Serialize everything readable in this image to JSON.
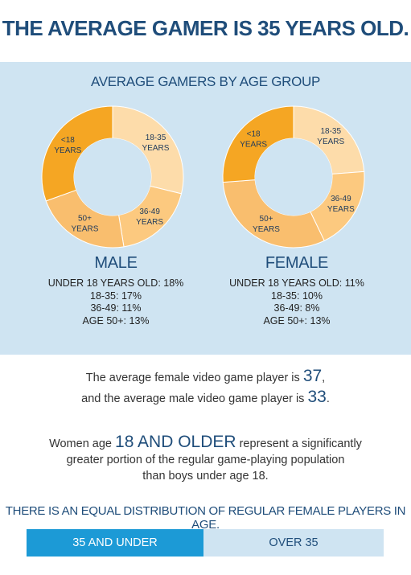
{
  "title": "THE AVERAGE GAMER IS 35 YEARS OLD.",
  "chart_section_title": "AVERAGE GAMERS BY AGE GROUP",
  "colors": {
    "under18": "#f5a623",
    "age18_35": "#fddcaa",
    "age36_49": "#fcc97f",
    "age50plus": "#f9be6e",
    "navy": "#1f4d7a",
    "panel": "#cfe4f2",
    "bar_blue": "#1c9ad6"
  },
  "chart_data": [
    {
      "type": "pie",
      "title": "MALE",
      "categories": [
        "<18 YEARS",
        "18-35 YEARS",
        "36-49 YEARS",
        "50+ YEARS"
      ],
      "values": [
        18,
        17,
        11,
        13
      ],
      "stats": [
        "UNDER 18 YEARS OLD: 18%",
        "18-35: 17%",
        "36-49: 11%",
        "AGE 50+: 13%"
      ]
    },
    {
      "type": "pie",
      "title": "FEMALE",
      "categories": [
        "<18 YEARS",
        "18-35 YEARS",
        "36-49 YEARS",
        "50+ YEARS"
      ],
      "values": [
        11,
        10,
        8,
        13
      ],
      "stats": [
        "UNDER 18 YEARS OLD: 11%",
        "18-35: 10%",
        "36-49: 8%",
        "AGE 50+: 13%"
      ]
    }
  ],
  "facts": {
    "line1_text": "The average female video game player is ",
    "line1_value": "37",
    "line1_end": ",",
    "line2_text": "and the average male video game player is ",
    "line2_value": "33",
    "line2_end": ".",
    "women_pre": "Women age ",
    "women_highlight": "18 AND OLDER",
    "women_post": " represent a significantly",
    "women_line2": "greater portion of the regular game-playing population",
    "women_line3": "than boys under age 18."
  },
  "distribution": {
    "heading": "THERE IS AN EQUAL DISTRIBUTION OF REGULAR FEMALE PLAYERS IN AGE.",
    "left_label": "35 AND UNDER",
    "right_label": "OVER 35"
  }
}
